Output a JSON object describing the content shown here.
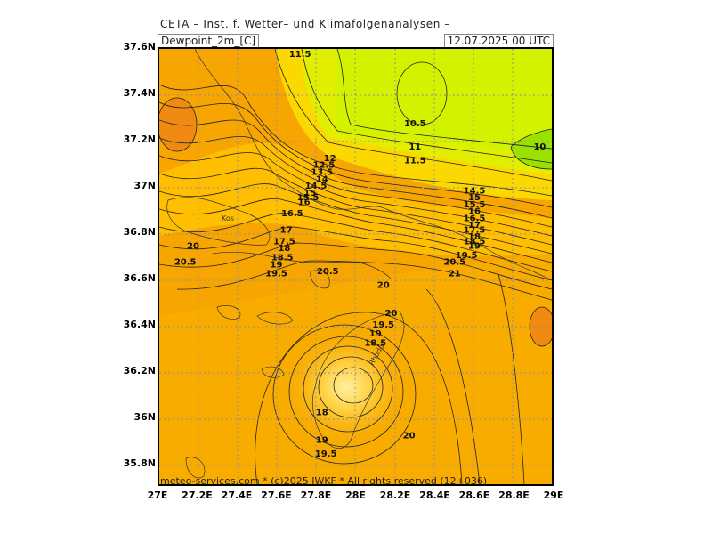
{
  "header": {
    "institute": "CETA – Inst. f. Wetter– und Klimafolgenanalysen –",
    "parameter": "Dewpoint_2m_[C]",
    "valid_time": "12.07.2025 00 UTC"
  },
  "footer": {
    "credit": "meteo-services.com * (c)2025 IWKF * All rights reserved (12+036)"
  },
  "axes": {
    "y_ticks": [
      "37.6N",
      "37.4N",
      "37.2N",
      "37N",
      "36.8N",
      "36.6N",
      "36.4N",
      "36.2N",
      "36N",
      "35.8N"
    ],
    "x_ticks": [
      "27E",
      "27.2E",
      "27.4E",
      "27.6E",
      "27.8E",
      "28E",
      "28.2E",
      "28.4E",
      "28.6E",
      "28.8E",
      "29E"
    ]
  },
  "places": {
    "kos": "Kos",
    "rhodes": "Rhodos"
  },
  "contour_labels": [
    {
      "text": "11.5",
      "lon": 27.72,
      "lat": 37.58
    },
    {
      "text": "10.5",
      "lon": 28.3,
      "lat": 37.28
    },
    {
      "text": "11",
      "lon": 28.3,
      "lat": 37.18
    },
    {
      "text": "11.5",
      "lon": 28.3,
      "lat": 37.12
    },
    {
      "text": "10",
      "lon": 28.93,
      "lat": 37.18
    },
    {
      "text": "12",
      "lon": 27.87,
      "lat": 37.13
    },
    {
      "text": "12.5",
      "lon": 27.84,
      "lat": 37.1
    },
    {
      "text": "13.5",
      "lon": 27.83,
      "lat": 37.07
    },
    {
      "text": "14",
      "lon": 27.83,
      "lat": 37.04
    },
    {
      "text": "14.5",
      "lon": 27.8,
      "lat": 37.01
    },
    {
      "text": "15",
      "lon": 27.77,
      "lat": 36.98
    },
    {
      "text": "15.5",
      "lon": 27.76,
      "lat": 36.96
    },
    {
      "text": "16",
      "lon": 27.74,
      "lat": 36.94
    },
    {
      "text": "16.5",
      "lon": 27.68,
      "lat": 36.89
    },
    {
      "text": "17",
      "lon": 27.65,
      "lat": 36.82
    },
    {
      "text": "17.5",
      "lon": 27.64,
      "lat": 36.77
    },
    {
      "text": "18",
      "lon": 27.64,
      "lat": 36.74
    },
    {
      "text": "18.5",
      "lon": 27.63,
      "lat": 36.7
    },
    {
      "text": "19",
      "lon": 27.6,
      "lat": 36.67
    },
    {
      "text": "19.5",
      "lon": 27.6,
      "lat": 36.63
    },
    {
      "text": "20",
      "lon": 27.18,
      "lat": 36.75
    },
    {
      "text": "20.5",
      "lon": 27.14,
      "lat": 36.68
    },
    {
      "text": "20.5",
      "lon": 27.86,
      "lat": 36.64
    },
    {
      "text": "20",
      "lon": 28.14,
      "lat": 36.58
    },
    {
      "text": "14.5",
      "lon": 28.6,
      "lat": 36.99
    },
    {
      "text": "15",
      "lon": 28.6,
      "lat": 36.96
    },
    {
      "text": "15.5",
      "lon": 28.6,
      "lat": 36.93
    },
    {
      "text": "16",
      "lon": 28.6,
      "lat": 36.9
    },
    {
      "text": "16.5",
      "lon": 28.6,
      "lat": 36.87
    },
    {
      "text": "17",
      "lon": 28.6,
      "lat": 36.84
    },
    {
      "text": "17.5",
      "lon": 28.6,
      "lat": 36.82
    },
    {
      "text": "18",
      "lon": 28.6,
      "lat": 36.79
    },
    {
      "text": "18.5",
      "lon": 28.6,
      "lat": 36.77
    },
    {
      "text": "19",
      "lon": 28.6,
      "lat": 36.75
    },
    {
      "text": "19.5",
      "lon": 28.56,
      "lat": 36.71
    },
    {
      "text": "20.5",
      "lon": 28.5,
      "lat": 36.68
    },
    {
      "text": "21",
      "lon": 28.5,
      "lat": 36.63
    },
    {
      "text": "20",
      "lon": 28.18,
      "lat": 36.46
    },
    {
      "text": "19.5",
      "lon": 28.14,
      "lat": 36.41
    },
    {
      "text": "19",
      "lon": 28.1,
      "lat": 36.37
    },
    {
      "text": "18.5",
      "lon": 28.1,
      "lat": 36.33
    },
    {
      "text": "18",
      "lon": 27.83,
      "lat": 36.03
    },
    {
      "text": "19",
      "lon": 27.83,
      "lat": 35.91
    },
    {
      "text": "19.5",
      "lon": 27.85,
      "lat": 35.85
    },
    {
      "text": "20",
      "lon": 28.27,
      "lat": 35.93
    }
  ],
  "colors": {
    "bg_dry": "#d6f000",
    "bg_green": "#99e000",
    "bg_yellow": "#f8d000",
    "bg_lightorange": "#ffc000",
    "bg_orange": "#f8a800",
    "bg_deep": "#f08a10",
    "contour": "#222222",
    "grid": "#8c8ca8"
  }
}
